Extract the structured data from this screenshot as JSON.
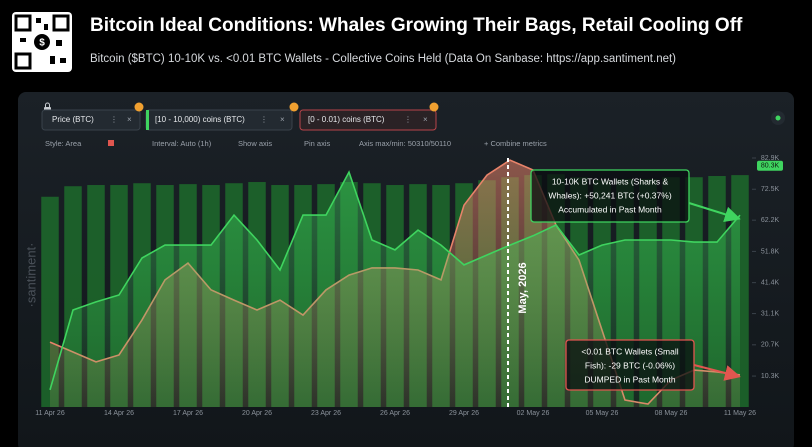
{
  "chart_data": {
    "type": "combo",
    "title": "Bitcoin Ideal Conditions: Whales Growing Their Bags, Retail Cooling Off",
    "subtitle": "Bitcoin ($BTC) 10-10K vs. <0.01 BTC Wallets - Collective Coins Held (Data On Sanbase: https://app.santiment.net)",
    "categories": [
      "11 Apr 26",
      null,
      null,
      "14 Apr 26",
      null,
      null,
      "17 Apr 26",
      null,
      null,
      "20 Apr 26",
      null,
      null,
      "23 Apr 26",
      null,
      null,
      "26 Apr 26",
      null,
      null,
      "29 Apr 26",
      null,
      null,
      "02 May 26",
      null,
      null,
      "05 May 26",
      null,
      null,
      "08 May 26",
      null,
      null,
      "11 May 26"
    ],
    "series": [
      {
        "name": "Price (BTC)",
        "style": "bar",
        "color": "#1d6b2c",
        "values": [
          70000,
          73500,
          73900,
          73900,
          74500,
          73900,
          74200,
          73900,
          74500,
          74900,
          73900,
          73900,
          74200,
          74900,
          74500,
          73900,
          74200,
          73900,
          74500,
          75500,
          76500,
          77200,
          77500,
          76500,
          75500,
          75900,
          75900,
          76500,
          76500,
          76900,
          77200
        ]
      },
      {
        "name": "[0 - 0.01) coins (BTC)",
        "style": "area",
        "color": "#e8836a",
        "values": [
          21600,
          18300,
          15000,
          17300,
          29000,
          42300,
          47900,
          39000,
          35600,
          32300,
          35600,
          30600,
          39000,
          43900,
          46300,
          46300,
          45600,
          42300,
          67200,
          77200,
          82200,
          78900,
          60600,
          48900,
          25600,
          2300,
          1000,
          9000,
          12300,
          11700,
          10700
        ]
      },
      {
        "name": "[10 - 10,000) coins (BTC)",
        "style": "area",
        "color": "#3fd45f",
        "values": [
          5700,
          32300,
          35000,
          37300,
          49600,
          53900,
          53900,
          53900,
          63900,
          55600,
          45600,
          63900,
          63900,
          78200,
          55600,
          52300,
          58900,
          53900,
          47300,
          50600,
          53900,
          57000,
          60600,
          50600,
          53900,
          55600,
          55600,
          55600,
          54900,
          54900,
          63900
        ]
      }
    ],
    "ylim": [
      0,
      82900
    ],
    "yticks": [
      {
        "value": 10300,
        "label": "10.3K"
      },
      {
        "value": 20700,
        "label": "20.7K"
      },
      {
        "value": 31100,
        "label": "31.1K"
      },
      {
        "value": 41400,
        "label": "41.4K"
      },
      {
        "value": 51800,
        "label": "51.8K"
      },
      {
        "value": 62200,
        "label": "62.2K"
      },
      {
        "value": 72500,
        "label": "72.5K"
      },
      {
        "value": 82900,
        "label": "82.9K"
      }
    ],
    "current_value": {
      "value": 80300,
      "label": "80.3K"
    },
    "marker_label": "May, 2026",
    "annotations": [
      {
        "lines": [
          "10-10K BTC Wallets (Sharks &",
          "Whales): +50,241 BTC (+0.37%)",
          "Accumulated in Past Month"
        ],
        "color": "#3fd45f"
      },
      {
        "lines": [
          "<0.01 BTC Wallets (Small",
          "Fish): -29 BTC (-0.06%)",
          "DUMPED in Past Month"
        ],
        "color": "#e0564f"
      }
    ],
    "grid": false
  },
  "toolbar": {
    "controls": [
      "Style: Area",
      "Interval: Auto (1h)",
      "Show axis",
      "Pin axis",
      "Axis max/min: 50310/50110",
      "+ Combine metrics"
    ]
  },
  "watermark": "·santiment·"
}
